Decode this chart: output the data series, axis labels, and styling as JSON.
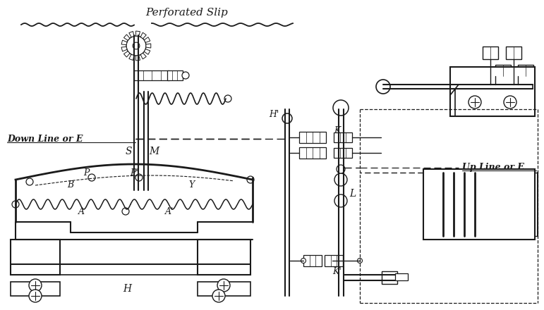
{
  "bg_color": "#ffffff",
  "ink_color": "#1a1a1a",
  "labels": {
    "perforated_slip": "Perforated Slip",
    "S": "S",
    "M": "M",
    "down_line": "Down Line or E",
    "B": "B",
    "Y": "Y",
    "P": "P",
    "P_prime": "P'",
    "A": "A",
    "A_prime": "A'",
    "H": "H",
    "H_prime": "H'",
    "K": "K",
    "K_prime": "K'",
    "L": "L",
    "up_line": "Up Line or E"
  }
}
